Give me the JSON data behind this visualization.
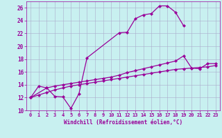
{
  "background_color": "#c8f0f0",
  "line_color": "#990099",
  "grid_color": "#aaaacc",
  "xlabel": "Windchill (Refroidissement éolien,°C)",
  "xlim": [
    -0.5,
    23.5
  ],
  "ylim": [
    10,
    27
  ],
  "yticks": [
    10,
    12,
    14,
    16,
    18,
    20,
    22,
    24,
    26
  ],
  "xticks": [
    0,
    1,
    2,
    3,
    4,
    5,
    6,
    7,
    8,
    9,
    10,
    11,
    12,
    13,
    14,
    15,
    16,
    17,
    18,
    19,
    20,
    21,
    22,
    23
  ],
  "line1_x": [
    0,
    1,
    2,
    3,
    4,
    5,
    6,
    7,
    11,
    12,
    13,
    14,
    15,
    16,
    17,
    18,
    19
  ],
  "line1_y": [
    12.0,
    13.8,
    13.5,
    12.2,
    12.1,
    10.3,
    12.6,
    18.2,
    22.1,
    22.2,
    24.3,
    24.9,
    25.1,
    26.3,
    26.3,
    25.3,
    23.2
  ],
  "line2_x": [
    0,
    2,
    3,
    4,
    5,
    6,
    7,
    8,
    9,
    10,
    11,
    12,
    13,
    14,
    15,
    16,
    17,
    18,
    19,
    20,
    21,
    22,
    23
  ],
  "line2_y": [
    12.0,
    13.5,
    13.8,
    14.0,
    14.2,
    14.4,
    14.6,
    14.8,
    15.0,
    15.2,
    15.5,
    15.9,
    16.2,
    16.5,
    16.8,
    17.1,
    17.4,
    17.7,
    18.5,
    16.6,
    16.5,
    17.3,
    17.3
  ],
  "line3_x": [
    0,
    1,
    2,
    3,
    4,
    5,
    6,
    7,
    8,
    9,
    10,
    11,
    12,
    13,
    14,
    15,
    16,
    17,
    18,
    19,
    20,
    21,
    22,
    23
  ],
  "line3_y": [
    12.0,
    12.4,
    12.8,
    13.2,
    13.5,
    13.8,
    14.0,
    14.2,
    14.4,
    14.6,
    14.8,
    15.0,
    15.2,
    15.4,
    15.6,
    15.8,
    16.0,
    16.2,
    16.4,
    16.5,
    16.6,
    16.7,
    16.8,
    17.0
  ]
}
